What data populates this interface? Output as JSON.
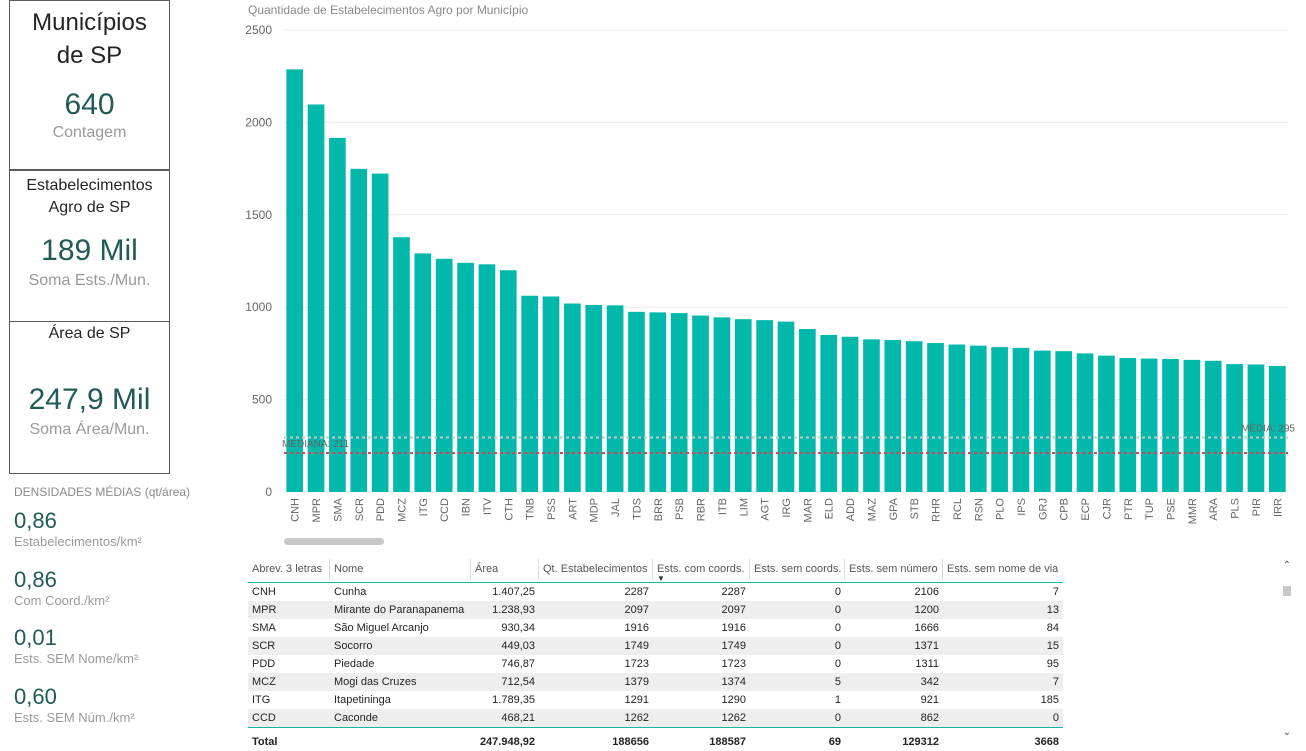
{
  "cards": {
    "municipios": {
      "title_line1": "Municípios",
      "title_line2": "de SP",
      "value": "640",
      "sub": "Contagem"
    },
    "estabelecimentos": {
      "title_line1": "Estabelecimentos",
      "title_line2": "Agro de SP",
      "value": "189 Mil",
      "sub": "Soma Ests./Mun."
    },
    "area": {
      "title_line1": "Área de SP",
      "value": "247,9 Mil",
      "sub": "Soma Área/Mun."
    }
  },
  "densities": {
    "title": "DENSIDADES MÉDIAS (qt/área)",
    "items": [
      {
        "value": "0,86",
        "label": "Estabelecimentos/km²"
      },
      {
        "value": "0,86",
        "label": "Com Coord./km²"
      },
      {
        "value": "0,01",
        "label": "Ests. SEM Nome/km²"
      },
      {
        "value": "0,60",
        "label": "Ests. SEM Núm./km²"
      }
    ]
  },
  "chart_title": "Quantidade de Estabelecimentos Agro por Município",
  "chart_data": {
    "type": "bar",
    "title": "Quantidade de Estabelecimentos Agro por Município",
    "categories": [
      "CNH",
      "MPR",
      "SMA",
      "SCR",
      "PDD",
      "MCZ",
      "ITG",
      "CCD",
      "IBN",
      "ITV",
      "CTH",
      "TNB",
      "PSS",
      "ART",
      "MDP",
      "JAL",
      "TDS",
      "BRR",
      "PSB",
      "RBR",
      "ITB",
      "LIM",
      "AGT",
      "IRG",
      "MAR",
      "ELD",
      "ADD",
      "MAZ",
      "GPA",
      "STB",
      "RHR",
      "RCL",
      "RSN",
      "PLO",
      "IPS",
      "GRJ",
      "CPB",
      "ECP",
      "CJR",
      "PTR",
      "TUP",
      "PSE",
      "MMR",
      "ARA",
      "PLS",
      "PIR",
      "IRR"
    ],
    "values": [
      2287,
      2097,
      1916,
      1749,
      1723,
      1379,
      1291,
      1262,
      1240,
      1232,
      1200,
      1062,
      1058,
      1020,
      1012,
      1010,
      975,
      972,
      968,
      955,
      945,
      935,
      930,
      922,
      882,
      850,
      840,
      826,
      822,
      816,
      806,
      798,
      792,
      784,
      780,
      765,
      762,
      750,
      738,
      725,
      722,
      720,
      715,
      710,
      692,
      690,
      682
    ],
    "ylim": [
      0,
      2500
    ],
    "yticks": [
      "0",
      "500",
      "1000",
      "1500",
      "2000",
      "2500"
    ],
    "color": "#01b8aa",
    "reference_lines": [
      {
        "label": "MEDIANA: 211",
        "value": 211,
        "color": "#d64550"
      },
      {
        "label": "MÉDIA: 295",
        "value": 295,
        "color": "#c8c8c8"
      }
    ]
  },
  "table": {
    "columns": [
      "Abrev. 3 letras",
      "Nome",
      "Área",
      "Qt. Estabelecimentos",
      "Ests. com coords.",
      "Ests. sem coords.",
      "Ests. sem número",
      "Ests. sem nome de via"
    ],
    "rows": [
      [
        "CNH",
        "Cunha",
        "1.407,25",
        "2287",
        "2287",
        "0",
        "2106",
        "7"
      ],
      [
        "MPR",
        "Mirante do Paranapanema",
        "1.238,93",
        "2097",
        "2097",
        "0",
        "1200",
        "13"
      ],
      [
        "SMA",
        "São Miguel Arcanjo",
        "930,34",
        "1916",
        "1916",
        "0",
        "1666",
        "84"
      ],
      [
        "SCR",
        "Socorro",
        "449,03",
        "1749",
        "1749",
        "0",
        "1371",
        "15"
      ],
      [
        "PDD",
        "Piedade",
        "746,87",
        "1723",
        "1723",
        "0",
        "1311",
        "95"
      ],
      [
        "MCZ",
        "Mogi das Cruzes",
        "712,54",
        "1379",
        "1374",
        "5",
        "342",
        "7"
      ],
      [
        "ITG",
        "Itapetininga",
        "1.789,35",
        "1291",
        "1290",
        "1",
        "921",
        "185"
      ],
      [
        "CCD",
        "Caconde",
        "468,21",
        "1262",
        "1262",
        "0",
        "862",
        "0"
      ]
    ],
    "total": [
      "Total",
      "",
      "247.948,92",
      "188656",
      "188587",
      "69",
      "129312",
      "3668"
    ]
  },
  "icons": {
    "scroll_up": "chevron-up-icon",
    "scroll_down": "chevron-down-icon",
    "sort": "sort-desc-icon"
  }
}
